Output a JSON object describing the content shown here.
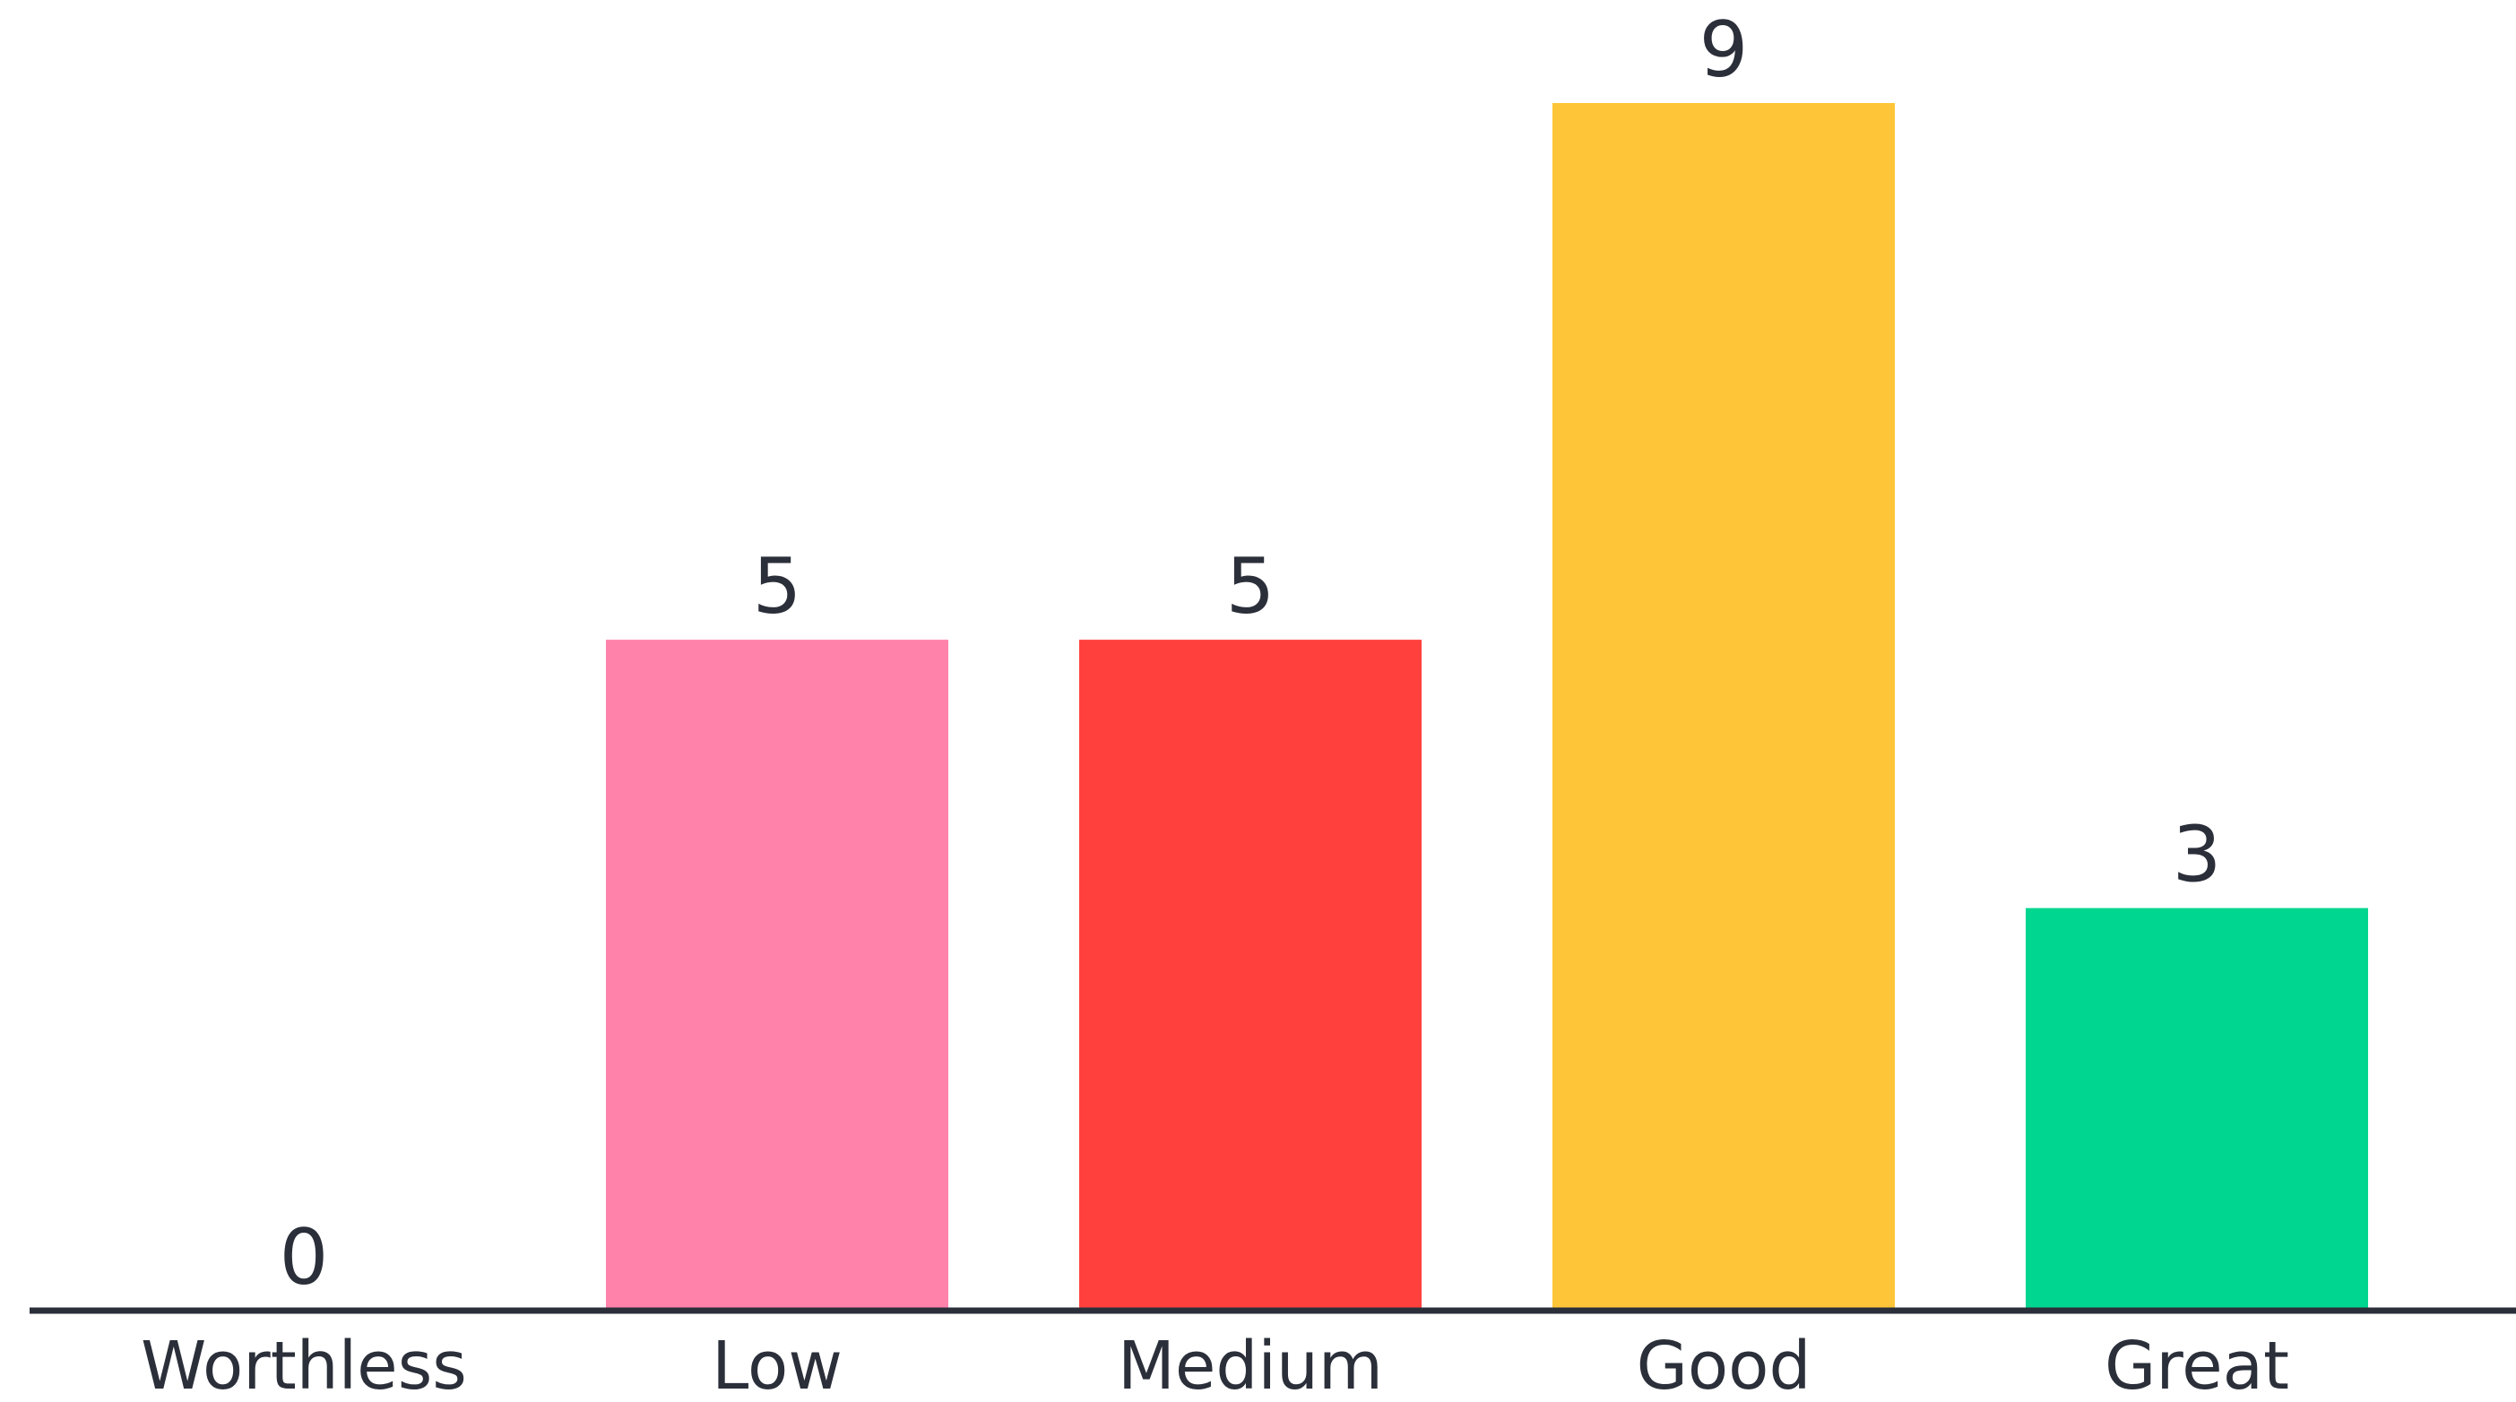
{
  "chart_data": {
    "type": "bar",
    "title": "",
    "xlabel": "",
    "ylabel": "",
    "categories": [
      "Worthless",
      "Low",
      "Medium",
      "Good",
      "Great"
    ],
    "values": [
      0,
      5,
      5,
      9,
      3
    ],
    "value_labels": [
      "0",
      "5",
      "5",
      "9",
      "3"
    ],
    "colors": [
      "#ff82ab",
      "#ff82ab",
      "#ff403d",
      "#ffc538",
      "#00d68f"
    ],
    "ylim": [
      0,
      9
    ],
    "grid": false,
    "legend": "none",
    "show_y_axis": false
  },
  "colors": {
    "axis": "#2b2f3a",
    "text": "#2b2f3a",
    "background": "#ffffff"
  }
}
